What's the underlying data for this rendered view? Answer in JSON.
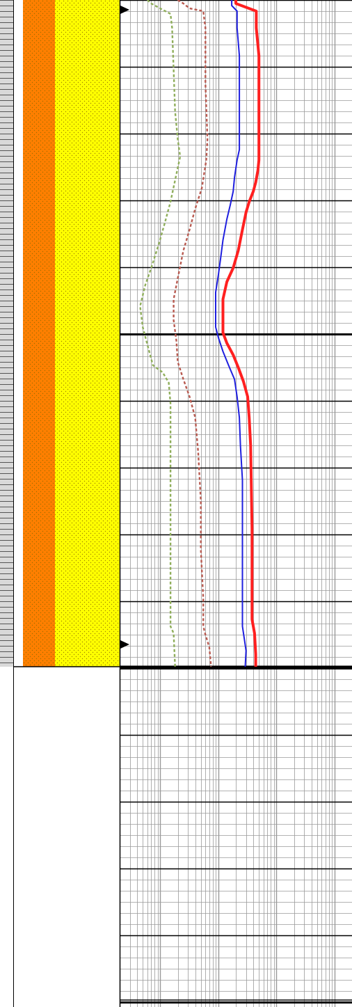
{
  "colors": {
    "background": "#ffffff",
    "depth_track_fill": "#d9d9d9",
    "lithology_unit_1": "#ff7f00",
    "lithology_unit_2": "#ffff00",
    "lithology_dots": "#8a6a00",
    "grid_minor": "#9a9a9a",
    "grid_major": "#000000",
    "marker": "#000000"
  },
  "chart_data": {
    "type": "line",
    "title": "",
    "xlabel": "",
    "ylabel": "",
    "x_scale": "log",
    "xlim": [
      0.2,
      2000
    ],
    "ylim": [
      0,
      1447
    ],
    "y_major_interval": 96,
    "grid": true,
    "legend": "none",
    "markers_y": [
      14,
      926
    ],
    "bottom_of_data": 958,
    "lithology": [
      {
        "top": 0,
        "bottom": 958,
        "unit": "lithology_unit_1",
        "pattern": "dotted"
      },
      {
        "top": 0,
        "bottom": 958,
        "unit": "lithology_unit_2",
        "pattern": "dotted"
      }
    ],
    "series": [
      {
        "color": "#ff2020",
        "style": "solid-thick",
        "points": [
          [
            20,
            0
          ],
          [
            20,
            5
          ],
          [
            45,
            16
          ],
          [
            45,
            40
          ],
          [
            50,
            80
          ],
          [
            50,
            230
          ],
          [
            48,
            245
          ],
          [
            44,
            262
          ],
          [
            40,
            275
          ],
          [
            34,
            290
          ],
          [
            30,
            305
          ],
          [
            26,
            330
          ],
          [
            22,
            360
          ],
          [
            18,
            385
          ],
          [
            14,
            405
          ],
          [
            12,
            430
          ],
          [
            12,
            460
          ],
          [
            12,
            478
          ],
          [
            14,
            493
          ],
          [
            18,
            510
          ],
          [
            22,
            528
          ],
          [
            27,
            548
          ],
          [
            32,
            570
          ],
          [
            34,
            600
          ],
          [
            36,
            640
          ],
          [
            37,
            700
          ],
          [
            38,
            760
          ],
          [
            38,
            840
          ],
          [
            38,
            890
          ],
          [
            42,
            910
          ],
          [
            44,
            940
          ],
          [
            44,
            958
          ]
        ]
      },
      {
        "color": "#1f1fdf",
        "style": "solid",
        "points": [
          [
            17,
            0
          ],
          [
            17,
            8
          ],
          [
            21,
            16
          ],
          [
            21,
            40
          ],
          [
            23,
            80
          ],
          [
            23,
            215
          ],
          [
            21,
            230
          ],
          [
            19,
            255
          ],
          [
            18,
            275
          ],
          [
            16,
            295
          ],
          [
            14,
            315
          ],
          [
            12,
            345
          ],
          [
            11,
            370
          ],
          [
            10,
            395
          ],
          [
            9,
            420
          ],
          [
            9,
            450
          ],
          [
            9,
            470
          ],
          [
            10,
            485
          ],
          [
            12,
            505
          ],
          [
            15,
            525
          ],
          [
            19,
            545
          ],
          [
            21,
            570
          ],
          [
            23,
            600
          ],
          [
            24,
            640
          ],
          [
            26,
            690
          ],
          [
            26,
            760
          ],
          [
            26,
            840
          ],
          [
            26,
            900
          ],
          [
            28,
            918
          ],
          [
            30,
            935
          ],
          [
            29,
            958
          ]
        ]
      },
      {
        "color": "#b85a50",
        "style": "dashed",
        "points": [
          [
            2,
            0
          ],
          [
            2.5,
            5
          ],
          [
            3.2,
            12
          ],
          [
            5.5,
            16
          ],
          [
            6,
            40
          ],
          [
            6,
            120
          ],
          [
            6.5,
            200
          ],
          [
            6.2,
            230
          ],
          [
            5.2,
            270
          ],
          [
            4,
            300
          ],
          [
            3.2,
            330
          ],
          [
            2.5,
            360
          ],
          [
            2,
            400
          ],
          [
            1.7,
            430
          ],
          [
            1.7,
            460
          ],
          [
            1.9,
            490
          ],
          [
            2,
            520
          ],
          [
            2.5,
            545
          ],
          [
            3.2,
            570
          ],
          [
            4,
            600
          ],
          [
            4.5,
            650
          ],
          [
            5,
            720
          ],
          [
            5,
            790
          ],
          [
            5.5,
            860
          ],
          [
            5.5,
            900
          ],
          [
            6,
            912
          ],
          [
            7,
            930
          ],
          [
            7.5,
            958
          ]
        ]
      },
      {
        "color": "#8fae5b",
        "style": "dashed",
        "points": [
          [
            0.6,
            0
          ],
          [
            0.7,
            5
          ],
          [
            1.1,
            14
          ],
          [
            1.5,
            20
          ],
          [
            1.6,
            40
          ],
          [
            1.7,
            100
          ],
          [
            1.8,
            160
          ],
          [
            2,
            200
          ],
          [
            2.2,
            225
          ],
          [
            1.9,
            250
          ],
          [
            1.5,
            290
          ],
          [
            1.2,
            320
          ],
          [
            0.95,
            350
          ],
          [
            0.7,
            385
          ],
          [
            0.55,
            410
          ],
          [
            0.45,
            440
          ],
          [
            0.5,
            470
          ],
          [
            0.6,
            495
          ],
          [
            0.75,
            525
          ],
          [
            1.1,
            535
          ],
          [
            1.4,
            550
          ],
          [
            1.5,
            580
          ],
          [
            1.5,
            620
          ],
          [
            1.5,
            700
          ],
          [
            1.5,
            800
          ],
          [
            1.5,
            900
          ],
          [
            1.7,
            910
          ],
          [
            1.8,
            958
          ]
        ]
      }
    ]
  }
}
